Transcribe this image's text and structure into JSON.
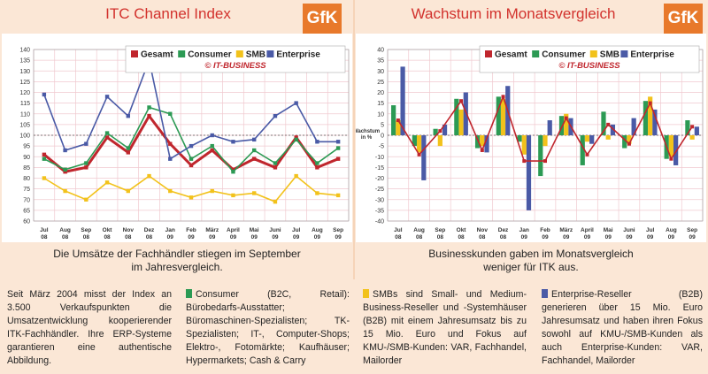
{
  "charts": [
    {
      "title": "ITC Channel Index",
      "logo": "GfK",
      "caption": [
        "Die Umsätze der Fachhändler stiegen im September",
        "im Jahresvergleich."
      ],
      "copyright": "© IT-BUSINESS"
    },
    {
      "title": "Wachstum im Monatsvergleich",
      "logo": "GfK",
      "caption": [
        "Businesskunden gaben im Monatsvergleich",
        "weniger für ITK aus."
      ],
      "copyright": "© IT-BUSINESS",
      "ylabel": "Wachstum in %"
    }
  ],
  "chart_data": [
    {
      "type": "line",
      "title": "ITC Channel Index",
      "categories": [
        "Jul 08",
        "Aug 08",
        "Sep 08",
        "Okt 08",
        "Nov 08",
        "Dez 08",
        "Jan 09",
        "Feb 09",
        "März 09",
        "April 09",
        "Mai 09",
        "Juni 09",
        "Jul 09",
        "Aug 09",
        "Sep 09"
      ],
      "ylim": [
        60,
        140
      ],
      "yticks": [
        60,
        65,
        70,
        75,
        80,
        85,
        90,
        95,
        100,
        105,
        110,
        115,
        120,
        125,
        130,
        135,
        140
      ],
      "reference_line": 100,
      "series": [
        {
          "name": "Gesamt",
          "color": "#c0262d",
          "values": [
            91,
            83,
            85,
            99,
            92,
            109,
            96,
            86,
            93,
            84,
            89,
            85,
            99,
            85,
            89
          ]
        },
        {
          "name": "Consumer",
          "color": "#2c9a54",
          "values": [
            89,
            84,
            87,
            101,
            94,
            113,
            110,
            89,
            95,
            83,
            93,
            87,
            98,
            87,
            94
          ]
        },
        {
          "name": "SMB",
          "color": "#f2c21b",
          "values": [
            80,
            74,
            70,
            78,
            74,
            81,
            74,
            71,
            74,
            72,
            73,
            69,
            81,
            73,
            72
          ]
        },
        {
          "name": "Enterprise",
          "color": "#4a5aa6",
          "values": [
            119,
            93,
            96,
            118,
            109,
            135,
            89,
            95,
            100,
            97,
            98,
            109,
            115,
            97,
            97
          ]
        }
      ]
    },
    {
      "type": "bar",
      "title": "Wachstum im Monatsvergleich",
      "ylabel": "Wachstum in %",
      "categories": [
        "Jul 08",
        "Aug 08",
        "Sep 08",
        "Okt 08",
        "Nov 08",
        "Dez 08",
        "Jan 09",
        "Feb 09",
        "März 09",
        "April 09",
        "Mai 09",
        "Juni 09",
        "Jul 09",
        "Aug 09",
        "Sep 09"
      ],
      "ylim": [
        -40,
        40
      ],
      "yticks": [
        -40,
        -35,
        -30,
        -25,
        -20,
        -15,
        -10,
        -5,
        0,
        5,
        10,
        15,
        20,
        25,
        30,
        35,
        40
      ],
      "series": [
        {
          "name": "Gesamt",
          "color": "#c0262d",
          "type": "line",
          "values": [
            7,
            -9,
            2,
            16,
            -7,
            18,
            -12,
            -12,
            8,
            -9,
            5,
            -4,
            15,
            -11,
            4
          ]
        },
        {
          "name": "Consumer",
          "color": "#2c9a54",
          "type": "bar",
          "values": [
            14,
            -5,
            3,
            17,
            -6,
            18,
            -3,
            -19,
            9,
            -14,
            11,
            -6,
            16,
            -11,
            7
          ]
        },
        {
          "name": "SMB",
          "color": "#f2c21b",
          "type": "bar",
          "values": [
            7,
            -8,
            -5,
            12,
            -5,
            17,
            -9,
            -5,
            10,
            -3,
            -2,
            -4,
            18,
            -10,
            -2
          ]
        },
        {
          "name": "Enterprise",
          "color": "#4a5aa6",
          "type": "bar",
          "values": [
            32,
            -21,
            5,
            20,
            -8,
            23,
            -35,
            7,
            8,
            -4,
            5,
            8,
            12,
            -14,
            4
          ]
        }
      ]
    }
  ],
  "bottom": {
    "intro": "Seit März 2004 misst der Index an 3.500 Verkaufspunkten die Umsatzentwicklung kooperierender ITK-Fachhändler. Ihre ERP-Systeme garantieren eine authentische Abbildung.",
    "consumer": "Consumer (B2C, Retail): Bürobedarfs-Ausstatter; Büromaschinen-Spezialisten; TK-Spezialisten; IT-, Computer-Shops; Elektro-, Fotomärkte; Kaufhäuser; Hypermarkets; Cash & Carry",
    "smb": "SMBs sind Small- und Medium-Business-Reseller und -Systemhäuser (B2B) mit einem Jahresumsatz bis zu 15 Mio. Euro und Fokus auf KMU-/SMB-Kunden: VAR, Fachhandel, Mailorder",
    "enterprise": "Enterprise-Reseller (B2B) generieren über 15 Mio. Euro Jahresumsatz und haben ihren Fokus sowohl auf KMU-/SMB-Kunden als auch Enterprise-Kunden: VAR, Fachhandel, Mailorder"
  }
}
